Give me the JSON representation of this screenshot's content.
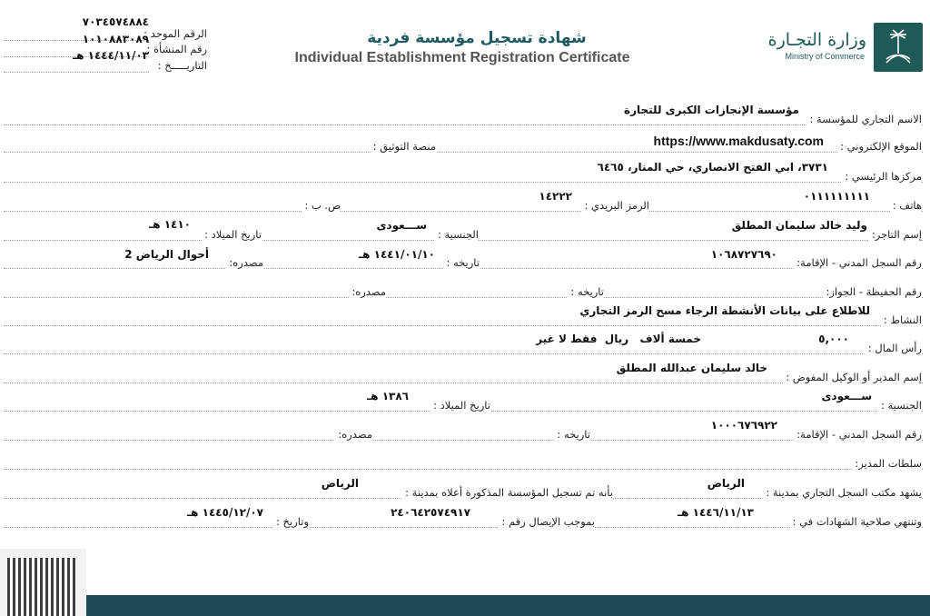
{
  "header": {
    "unified_number_label": "الرقم الموحد :",
    "unified_number": "٧٠٣٤٥٧٤٨٨٤",
    "establishment_number_label": "رقم المنشأة :",
    "establishment_number": "١٠١٠٨٨٣٠٨٩",
    "date_label": "التاريـــــخ :",
    "date": "١٤٤٤/١١/٠٣ هـ",
    "title_ar": "شهادة تسجيل مؤسسة فردية",
    "title_en": "Individual Establishment Registration Certificate",
    "ministry_ar": "وزارة التجـارة",
    "ministry_en": "Ministry of Commerce",
    "brand_color": "#1e5a57"
  },
  "fields": {
    "trade_name_label": "الاسم التجاري للمؤسسة :",
    "trade_name": "مؤسسة الإنجازات الكبرى للتجارة",
    "website_label": "الموقع الإلكتروني :",
    "website": "https://www.makdusaty.com",
    "verification_platform_label": "منصة التوثيق :",
    "hq_label": "مركزها الرئيسي :",
    "hq": "٣٧٣١، ابي الفتح الانصاري، حي المنار، ٦٤٦٥",
    "phone_label": "هاتف :",
    "phone": "٠١١١١١١١١١",
    "postal_label": "الرمز البريدي :",
    "postal": "١٤٢٢٢",
    "pobox_label": "ص. ب :",
    "merchant_label": "إسم التاجر:",
    "merchant": "وليد خالد سليمان المطلق",
    "nationality_label": "الجنسية :",
    "nationality": "ســـعودى",
    "birth_label": "تاريخ الميلاد :",
    "birth": "١٤١٠ هـ",
    "civil_label": "رقم السجل المدني - الإقامة:",
    "civil": "١٠٦٨٧٢٧٦٩٠",
    "civil_date_label": "تاريخه :",
    "civil_date": "١٤٤١/٠١/١٠ هـ",
    "civil_source_label": "مصدره:",
    "civil_source": "أحوال الرياض 2",
    "passport_label": "رقم الحفيظة - الجواز:",
    "passport_date_label": "تاريخه :",
    "passport_source_label": "مصدره:",
    "activity_label": "النشاط :",
    "activity": "للاطلاع على بيانات الأنشطة الرجاء مسح الرمز التجاري",
    "capital_label": "رأس المال :",
    "capital": "٥,٠٠٠",
    "capital_words": "خمسة ألاف   ريال  فقط لا غير",
    "manager_label": "إسم المدير أو الوكيل المفوض :",
    "manager": "خالد سليمان عبدالله المطلق",
    "mgr_nationality_label": "الجنسية :",
    "mgr_nationality": "ســـعودى",
    "mgr_birth_label": "تاريخ الميلاد :",
    "mgr_birth": "١٣٨٦ هـ",
    "mgr_civil_label": "رقم السجل المدني - الإقامة:",
    "mgr_civil": "١٠٠٠٦٧٦٩٢٢",
    "mgr_civil_date_label": "تاريخه :",
    "mgr_civil_source_label": "مصدره:",
    "mgr_powers_label": "سلطات المدير:",
    "office_label": "يشهد مكتب السجل التجاري بمدينة :",
    "office_city": "الرياض",
    "registered_label": "بأنه تم تسجيل المؤسسة المذكورة أعلاه بمدينة :",
    "registered_city": "الرياض",
    "expiry_label": "وتنتهي صلاحية الشهادات في :",
    "expiry": "١٤٤٦/١١/١٣ هـ",
    "receipt_label": "بموجب الإيصال رقم :",
    "receipt": "٢٤٠٦٤٢٥٧٤٩١٧",
    "receipt_date_label": "وتاريخ :",
    "receipt_date": "١٤٤٥/١٢/٠٧ هـ"
  }
}
